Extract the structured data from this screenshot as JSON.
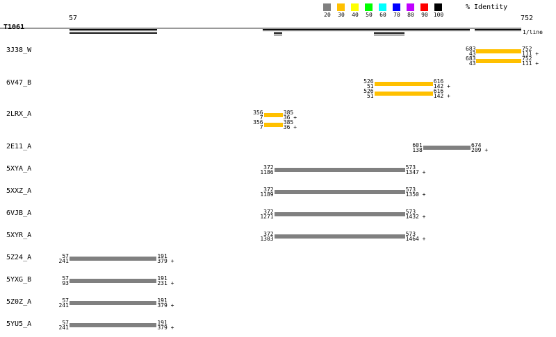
{
  "target": "T1061",
  "query_start": 57,
  "query_end": 752,
  "scale_note": "1/line",
  "legend": {
    "title": "% Identity",
    "items": [
      {
        "label": "20",
        "color": "#808080"
      },
      {
        "label": "30",
        "color": "#ffc000"
      },
      {
        "label": "40",
        "color": "#ffff00"
      },
      {
        "label": "50",
        "color": "#00ff00"
      },
      {
        "label": "60",
        "color": "#00ffff"
      },
      {
        "label": "70",
        "color": "#0000ff"
      },
      {
        "label": "80",
        "color": "#c000ff"
      },
      {
        "label": "90",
        "color": "#ff0000"
      },
      {
        "label": "100",
        "color": "#000000"
      }
    ]
  },
  "hits": [
    {
      "name": "3J38_W",
      "alignments": [
        {
          "q": [
            683,
            752
          ],
          "s": [
            43,
            111
          ],
          "identity": "30",
          "strand": "+"
        },
        {
          "q": [
            683,
            752
          ],
          "s": [
            43,
            111
          ],
          "identity": "30",
          "strand": "+"
        }
      ]
    },
    {
      "name": "6V47_B",
      "alignments": [
        {
          "q": [
            526,
            616
          ],
          "s": [
            51,
            142
          ],
          "identity": "30",
          "strand": "+"
        },
        {
          "q": [
            526,
            616
          ],
          "s": [
            51,
            142
          ],
          "identity": "30",
          "strand": "+"
        }
      ]
    },
    {
      "name": "2LRX_A",
      "alignments": [
        {
          "q": [
            356,
            385
          ],
          "s": [
            7,
            36
          ],
          "identity": "30",
          "strand": "+"
        },
        {
          "q": [
            356,
            385
          ],
          "s": [
            7,
            36
          ],
          "identity": "30",
          "strand": "+"
        }
      ]
    },
    {
      "name": "2E11_A",
      "alignments": [
        {
          "q": [
            601,
            674
          ],
          "s": [
            138,
            209
          ],
          "identity": "20",
          "strand": "+"
        }
      ]
    },
    {
      "name": "5XYA_A",
      "alignments": [
        {
          "q": [
            372,
            573
          ],
          "s": [
            1186,
            1347
          ],
          "identity": "20",
          "strand": "+"
        }
      ]
    },
    {
      "name": "5XXZ_A",
      "alignments": [
        {
          "q": [
            372,
            573
          ],
          "s": [
            1189,
            1350
          ],
          "identity": "20",
          "strand": "+"
        }
      ]
    },
    {
      "name": "6VJB_A",
      "alignments": [
        {
          "q": [
            372,
            573
          ],
          "s": [
            1271,
            1432
          ],
          "identity": "20",
          "strand": "+"
        }
      ]
    },
    {
      "name": "5XYR_A",
      "alignments": [
        {
          "q": [
            372,
            573
          ],
          "s": [
            1303,
            1464
          ],
          "identity": "20",
          "strand": "+"
        }
      ]
    },
    {
      "name": "5Z24_A",
      "alignments": [
        {
          "q": [
            57,
            191
          ],
          "s": [
            241,
            379
          ],
          "identity": "20",
          "strand": "+"
        }
      ]
    },
    {
      "name": "5YXG_B",
      "alignments": [
        {
          "q": [
            57,
            191
          ],
          "s": [
            93,
            231
          ],
          "identity": "20",
          "strand": "+"
        }
      ]
    },
    {
      "name": "5Z0Z_A",
      "alignments": [
        {
          "q": [
            57,
            191
          ],
          "s": [
            241,
            379
          ],
          "identity": "20",
          "strand": "+"
        }
      ]
    },
    {
      "name": "5YU5_A",
      "alignments": [
        {
          "q": [
            57,
            191
          ],
          "s": [
            241,
            379
          ],
          "identity": "20",
          "strand": "+"
        }
      ]
    }
  ]
}
